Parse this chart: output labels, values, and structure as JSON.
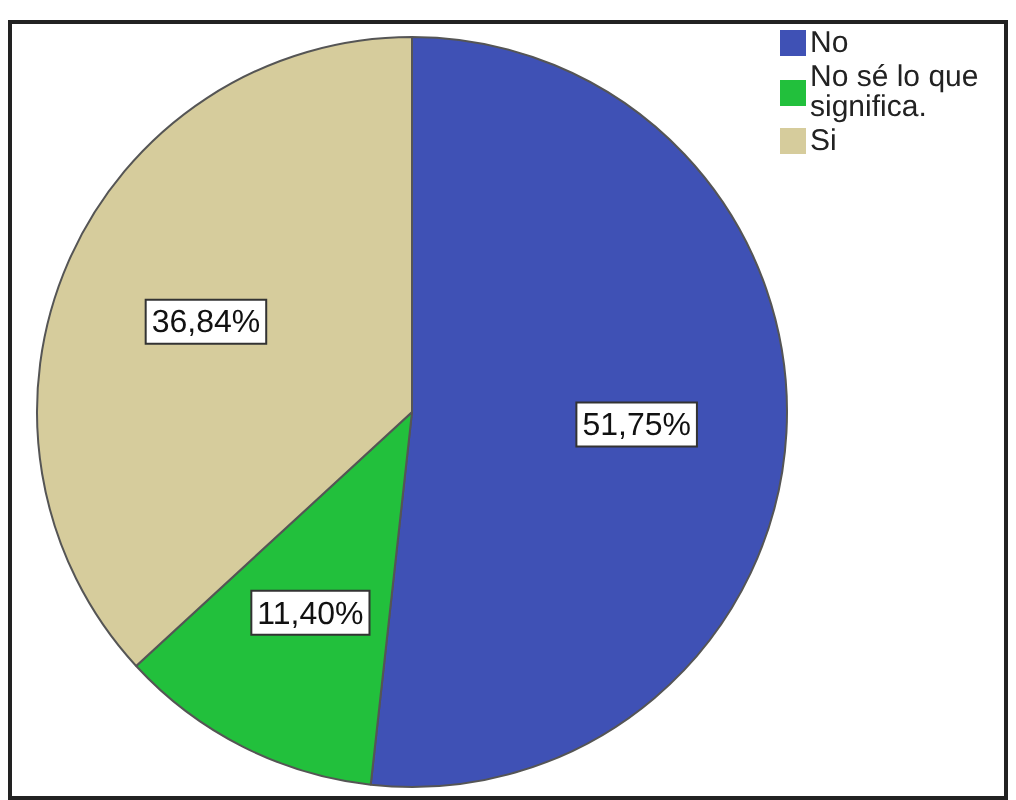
{
  "chart_data": {
    "type": "pie",
    "categories": [
      "No",
      "No sé lo que significa.",
      "Si"
    ],
    "values": [
      51.75,
      11.4,
      36.84
    ],
    "colors": [
      "#3f51b5",
      "#22c03c",
      "#d6cc9c"
    ],
    "value_labels": [
      "51,75%",
      "11,40%",
      "36,84%"
    ],
    "legend": "top right"
  }
}
